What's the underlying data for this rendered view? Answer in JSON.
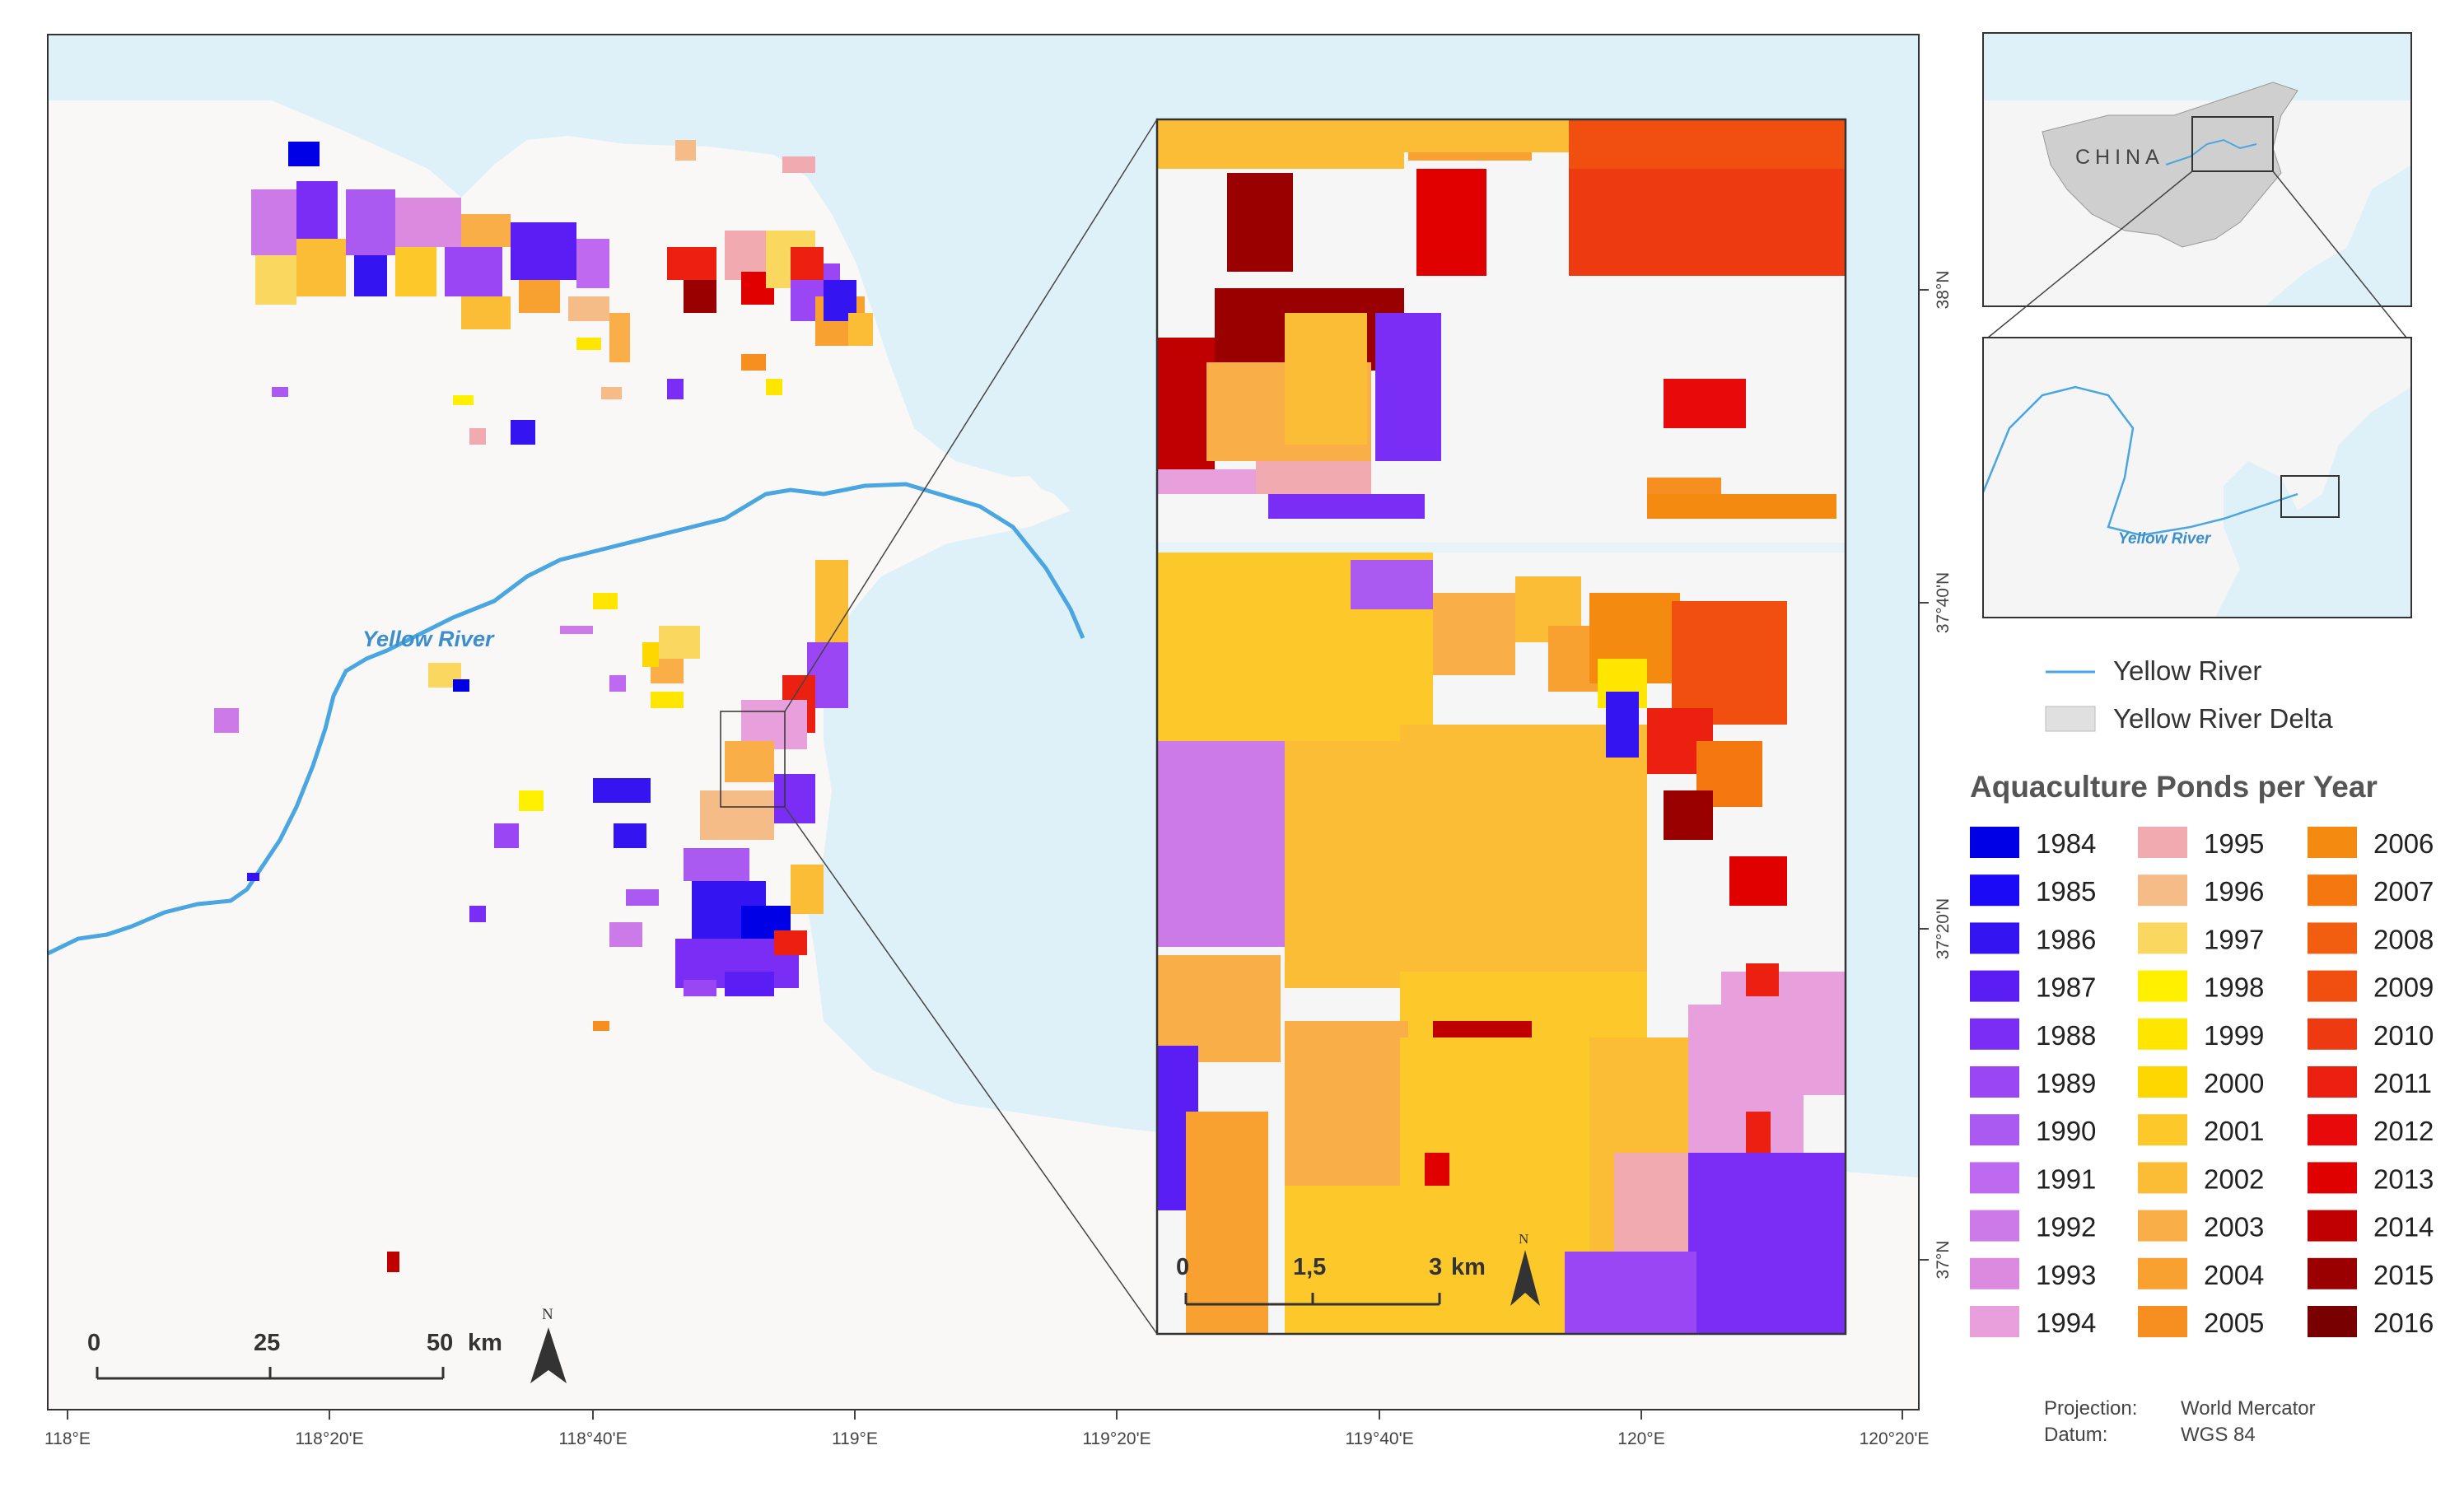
{
  "main_map": {
    "river_label": "Yellow River",
    "scalebar": {
      "labels": [
        "0",
        "25",
        "50"
      ],
      "unit": "km"
    },
    "north_label": "N",
    "lon_ticks": [
      "118°E",
      "118°20'E",
      "118°40'E",
      "119°E",
      "119°20'E",
      "119°40'E",
      "120°E",
      "120°20'E"
    ],
    "lat_ticks": [
      "38°N",
      "37°40'N",
      "37°20'N",
      "37°N"
    ]
  },
  "inset_detail": {
    "scalebar": {
      "labels": [
        "0",
        "1,5",
        "3"
      ],
      "unit": "km"
    },
    "north_label": "N"
  },
  "locator_china": {
    "label": "CHINA"
  },
  "locator_region": {
    "river_label": "Yellow River"
  },
  "legend": {
    "river_label": "Yellow River",
    "delta_label": "Yellow River Delta",
    "title": "Aquaculture Ponds per Year",
    "years": [
      {
        "year": "1984",
        "color": "#0000e6"
      },
      {
        "year": "1985",
        "color": "#1a0af5"
      },
      {
        "year": "1986",
        "color": "#3414f0"
      },
      {
        "year": "1987",
        "color": "#5a1ef5"
      },
      {
        "year": "1988",
        "color": "#7a2ef5"
      },
      {
        "year": "1989",
        "color": "#9a46f5"
      },
      {
        "year": "1990",
        "color": "#aa5af0"
      },
      {
        "year": "1991",
        "color": "#bd6af0"
      },
      {
        "year": "1992",
        "color": "#cc7ae8"
      },
      {
        "year": "1993",
        "color": "#dc8ae0"
      },
      {
        "year": "1994",
        "color": "#e8a0dc"
      },
      {
        "year": "1995",
        "color": "#f0aab0"
      },
      {
        "year": "1996",
        "color": "#f5bc88"
      },
      {
        "year": "1997",
        "color": "#fad860"
      },
      {
        "year": "1998",
        "color": "#fff000"
      },
      {
        "year": "1999",
        "color": "#ffe600"
      },
      {
        "year": "2000",
        "color": "#ffd700"
      },
      {
        "year": "2001",
        "color": "#fdc92a"
      },
      {
        "year": "2002",
        "color": "#fbbd36"
      },
      {
        "year": "2003",
        "color": "#f9ae48"
      },
      {
        "year": "2004",
        "color": "#f8a030"
      },
      {
        "year": "2005",
        "color": "#f78f20"
      },
      {
        "year": "2006",
        "color": "#f58a10"
      },
      {
        "year": "2007",
        "color": "#f47710"
      },
      {
        "year": "2008",
        "color": "#f25e10"
      },
      {
        "year": "2009",
        "color": "#f04f10"
      },
      {
        "year": "2010",
        "color": "#ee3a10"
      },
      {
        "year": "2011",
        "color": "#ec2010"
      },
      {
        "year": "2012",
        "color": "#e80a0a"
      },
      {
        "year": "2013",
        "color": "#e00000"
      },
      {
        "year": "2014",
        "color": "#c00000"
      },
      {
        "year": "2015",
        "color": "#9a0000"
      },
      {
        "year": "2016",
        "color": "#780000"
      }
    ]
  },
  "footer": {
    "projection_label": "Projection:",
    "projection_value": "World Mercator",
    "datum_label": "Datum:",
    "datum_value": "WGS 84"
  },
  "colors": {
    "sea": "#dff1f8",
    "land": "#f9f8f7",
    "river": "#4aa6e0",
    "china_fill": "#cfcfcf"
  }
}
